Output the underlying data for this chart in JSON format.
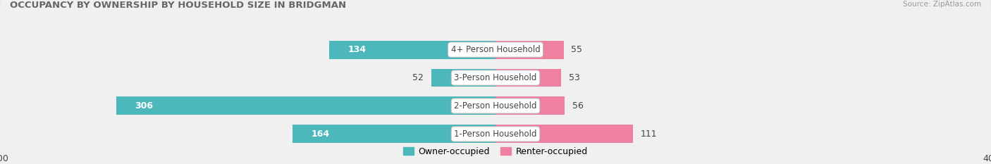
{
  "title": "OCCUPANCY BY OWNERSHIP BY HOUSEHOLD SIZE IN BRIDGMAN",
  "source": "Source: ZipAtlas.com",
  "categories": [
    "1-Person Household",
    "2-Person Household",
    "3-Person Household",
    "4+ Person Household"
  ],
  "owner_values": [
    164,
    306,
    52,
    134
  ],
  "renter_values": [
    111,
    56,
    53,
    55
  ],
  "owner_color": "#4db8bc",
  "renter_color": "#f080a0",
  "row_bg_color_light": "#f0f0f0",
  "row_bg_color_dark": "#e4e4e4",
  "axis_max": 400,
  "label_fontsize": 9,
  "title_fontsize": 9.5,
  "legend_owner": "Owner-occupied",
  "legend_renter": "Renter-occupied",
  "figure_bg": "#ffffff",
  "text_dark": "#444444",
  "text_light": "#ffffff"
}
